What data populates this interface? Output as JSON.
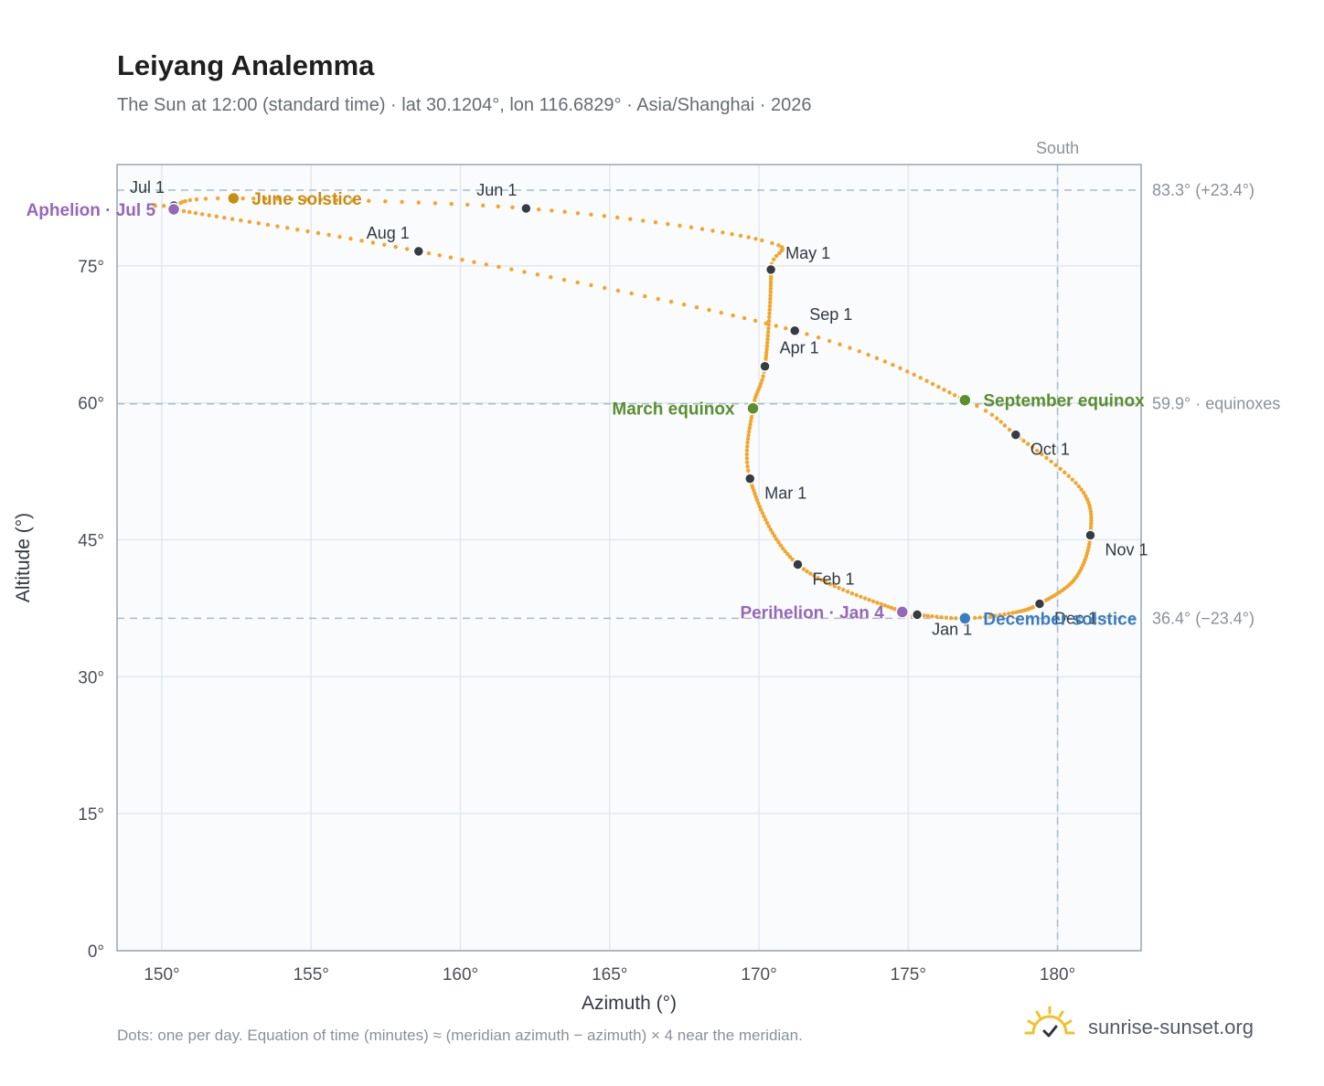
{
  "header": {
    "title": "Leiyang Analemma",
    "subtitle": "The Sun at 12:00 (standard time) · lat 30.1204°, lon 116.6829° · Asia/Shanghai · 2026"
  },
  "footer": {
    "note": "Dots: one per day. Equation of time (minutes) ≈ (meridian azimuth − azimuth) × 4 near the meridian.",
    "brand": "sunrise-sunset.org"
  },
  "colors": {
    "curve": "#f2a62a",
    "month_marker": "#363b44",
    "aphelion_perihelion": "#9568b8",
    "june_solstice": "#c98d10",
    "equinox": "#5a8f2e",
    "december_solstice": "#3a7cc0",
    "grid": "#e3e8ee",
    "reference_line": "#a9bccb",
    "plot_background": "#f9fbfd",
    "frame": "#9aa6b4",
    "logo": "#f0c12a"
  },
  "chart_data": {
    "type": "scatter",
    "xlabel": "Azimuth (°)",
    "ylabel": "Altitude (°)",
    "xlim": [
      148.5,
      182.8
    ],
    "ylim": [
      0,
      86.1
    ],
    "x_ticks": [
      {
        "value": 150,
        "label": "150°"
      },
      {
        "value": 155,
        "label": "155°"
      },
      {
        "value": 160,
        "label": "160°"
      },
      {
        "value": 165,
        "label": "165°"
      },
      {
        "value": 170,
        "label": "170°"
      },
      {
        "value": 175,
        "label": "175°"
      },
      {
        "value": 180,
        "label": "180°"
      }
    ],
    "y_ticks": [
      {
        "value": 0,
        "label": "0°"
      },
      {
        "value": 15,
        "label": "15°"
      },
      {
        "value": 30,
        "label": "30°"
      },
      {
        "value": 45,
        "label": "45°"
      },
      {
        "value": 60,
        "label": "60°"
      },
      {
        "value": 75,
        "label": "75°"
      }
    ],
    "grid": true,
    "reference_lines": [
      {
        "axis": "x",
        "value": 180,
        "label": "South"
      },
      {
        "axis": "y",
        "value": 83.3,
        "label": "83.3° (+23.4°)"
      },
      {
        "axis": "y",
        "value": 59.9,
        "label": "59.9° · equinoxes"
      },
      {
        "axis": "y",
        "value": 36.4,
        "label": "36.4° (−23.4°)"
      }
    ],
    "anchors": [
      {
        "doy": 1,
        "az": 175.3,
        "alt": 36.8
      },
      {
        "doy": 4,
        "az": 174.8,
        "alt": 37.1
      },
      {
        "doy": 32,
        "az": 171.3,
        "alt": 42.3
      },
      {
        "doy": 60,
        "az": 169.7,
        "alt": 51.7
      },
      {
        "doy": 79,
        "az": 169.8,
        "alt": 59.4
      },
      {
        "doy": 91,
        "az": 170.2,
        "alt": 64.0
      },
      {
        "doy": 121,
        "az": 170.4,
        "alt": 74.6
      },
      {
        "doy": 131,
        "az": 170.1,
        "alt": 77.8
      },
      {
        "doy": 152,
        "az": 162.2,
        "alt": 81.3
      },
      {
        "doy": 172,
        "az": 152.4,
        "alt": 82.4
      },
      {
        "doy": 182,
        "az": 150.4,
        "alt": 81.6
      },
      {
        "doy": 186,
        "az": 150.4,
        "alt": 81.2
      },
      {
        "doy": 213,
        "az": 158.6,
        "alt": 76.6
      },
      {
        "doy": 244,
        "az": 171.2,
        "alt": 67.9
      },
      {
        "doy": 266,
        "az": 176.9,
        "alt": 60.3
      },
      {
        "doy": 274,
        "az": 178.6,
        "alt": 56.5
      },
      {
        "doy": 290,
        "az": 180.8,
        "alt": 50.5
      },
      {
        "doy": 305,
        "az": 181.1,
        "alt": 45.5
      },
      {
        "doy": 320,
        "az": 180.6,
        "alt": 40.8
      },
      {
        "doy": 335,
        "az": 179.4,
        "alt": 38.0
      },
      {
        "doy": 345,
        "az": 178.5,
        "alt": 37.0
      },
      {
        "doy": 355,
        "az": 176.9,
        "alt": 36.4
      },
      {
        "doy": 366,
        "az": 175.3,
        "alt": 36.8
      }
    ],
    "month_markers": [
      {
        "label": "Jan 1",
        "az": 175.3,
        "alt": 36.8,
        "pos": "below"
      },
      {
        "label": "Feb 1",
        "az": 171.3,
        "alt": 42.3,
        "pos": "below-right"
      },
      {
        "label": "Mar 1",
        "az": 169.7,
        "alt": 51.7,
        "pos": "below-right"
      },
      {
        "label": "Apr 1",
        "az": 170.2,
        "alt": 64.0,
        "pos": "above-right-low"
      },
      {
        "label": "May 1",
        "az": 170.4,
        "alt": 74.6,
        "pos": "above-right"
      },
      {
        "label": "Jun 1",
        "az": 162.2,
        "alt": 81.3,
        "pos": "above-left"
      },
      {
        "label": "Jul 1",
        "az": 150.4,
        "alt": 81.6,
        "pos": "above-left"
      },
      {
        "label": "Aug 1",
        "az": 158.6,
        "alt": 76.6,
        "pos": "above-left"
      },
      {
        "label": "Sep 1",
        "az": 171.2,
        "alt": 67.9,
        "pos": "above-right"
      },
      {
        "label": "Oct 1",
        "az": 178.6,
        "alt": 56.5,
        "pos": "below-right"
      },
      {
        "label": "Nov 1",
        "az": 181.1,
        "alt": 45.5,
        "pos": "below-right"
      },
      {
        "label": "Dec 1",
        "az": 179.4,
        "alt": 38.0,
        "pos": "below-right"
      }
    ],
    "events": [
      {
        "label": "Aphelion · Jul 5",
        "az": 150.4,
        "alt": 81.2,
        "color_key": "aphelion_perihelion",
        "pos": "left"
      },
      {
        "label": "June solstice",
        "az": 152.4,
        "alt": 82.4,
        "color_key": "june_solstice",
        "pos": "right"
      },
      {
        "label": "March equinox",
        "az": 169.8,
        "alt": 59.4,
        "color_key": "equinox",
        "pos": "left"
      },
      {
        "label": "September equinox",
        "az": 176.9,
        "alt": 60.3,
        "color_key": "equinox",
        "pos": "right"
      },
      {
        "label": "Perihelion · Jan 4",
        "az": 174.8,
        "alt": 37.1,
        "color_key": "aphelion_perihelion",
        "pos": "left"
      },
      {
        "label": "December solstice",
        "az": 176.9,
        "alt": 36.4,
        "color_key": "december_solstice",
        "pos": "right"
      }
    ]
  }
}
